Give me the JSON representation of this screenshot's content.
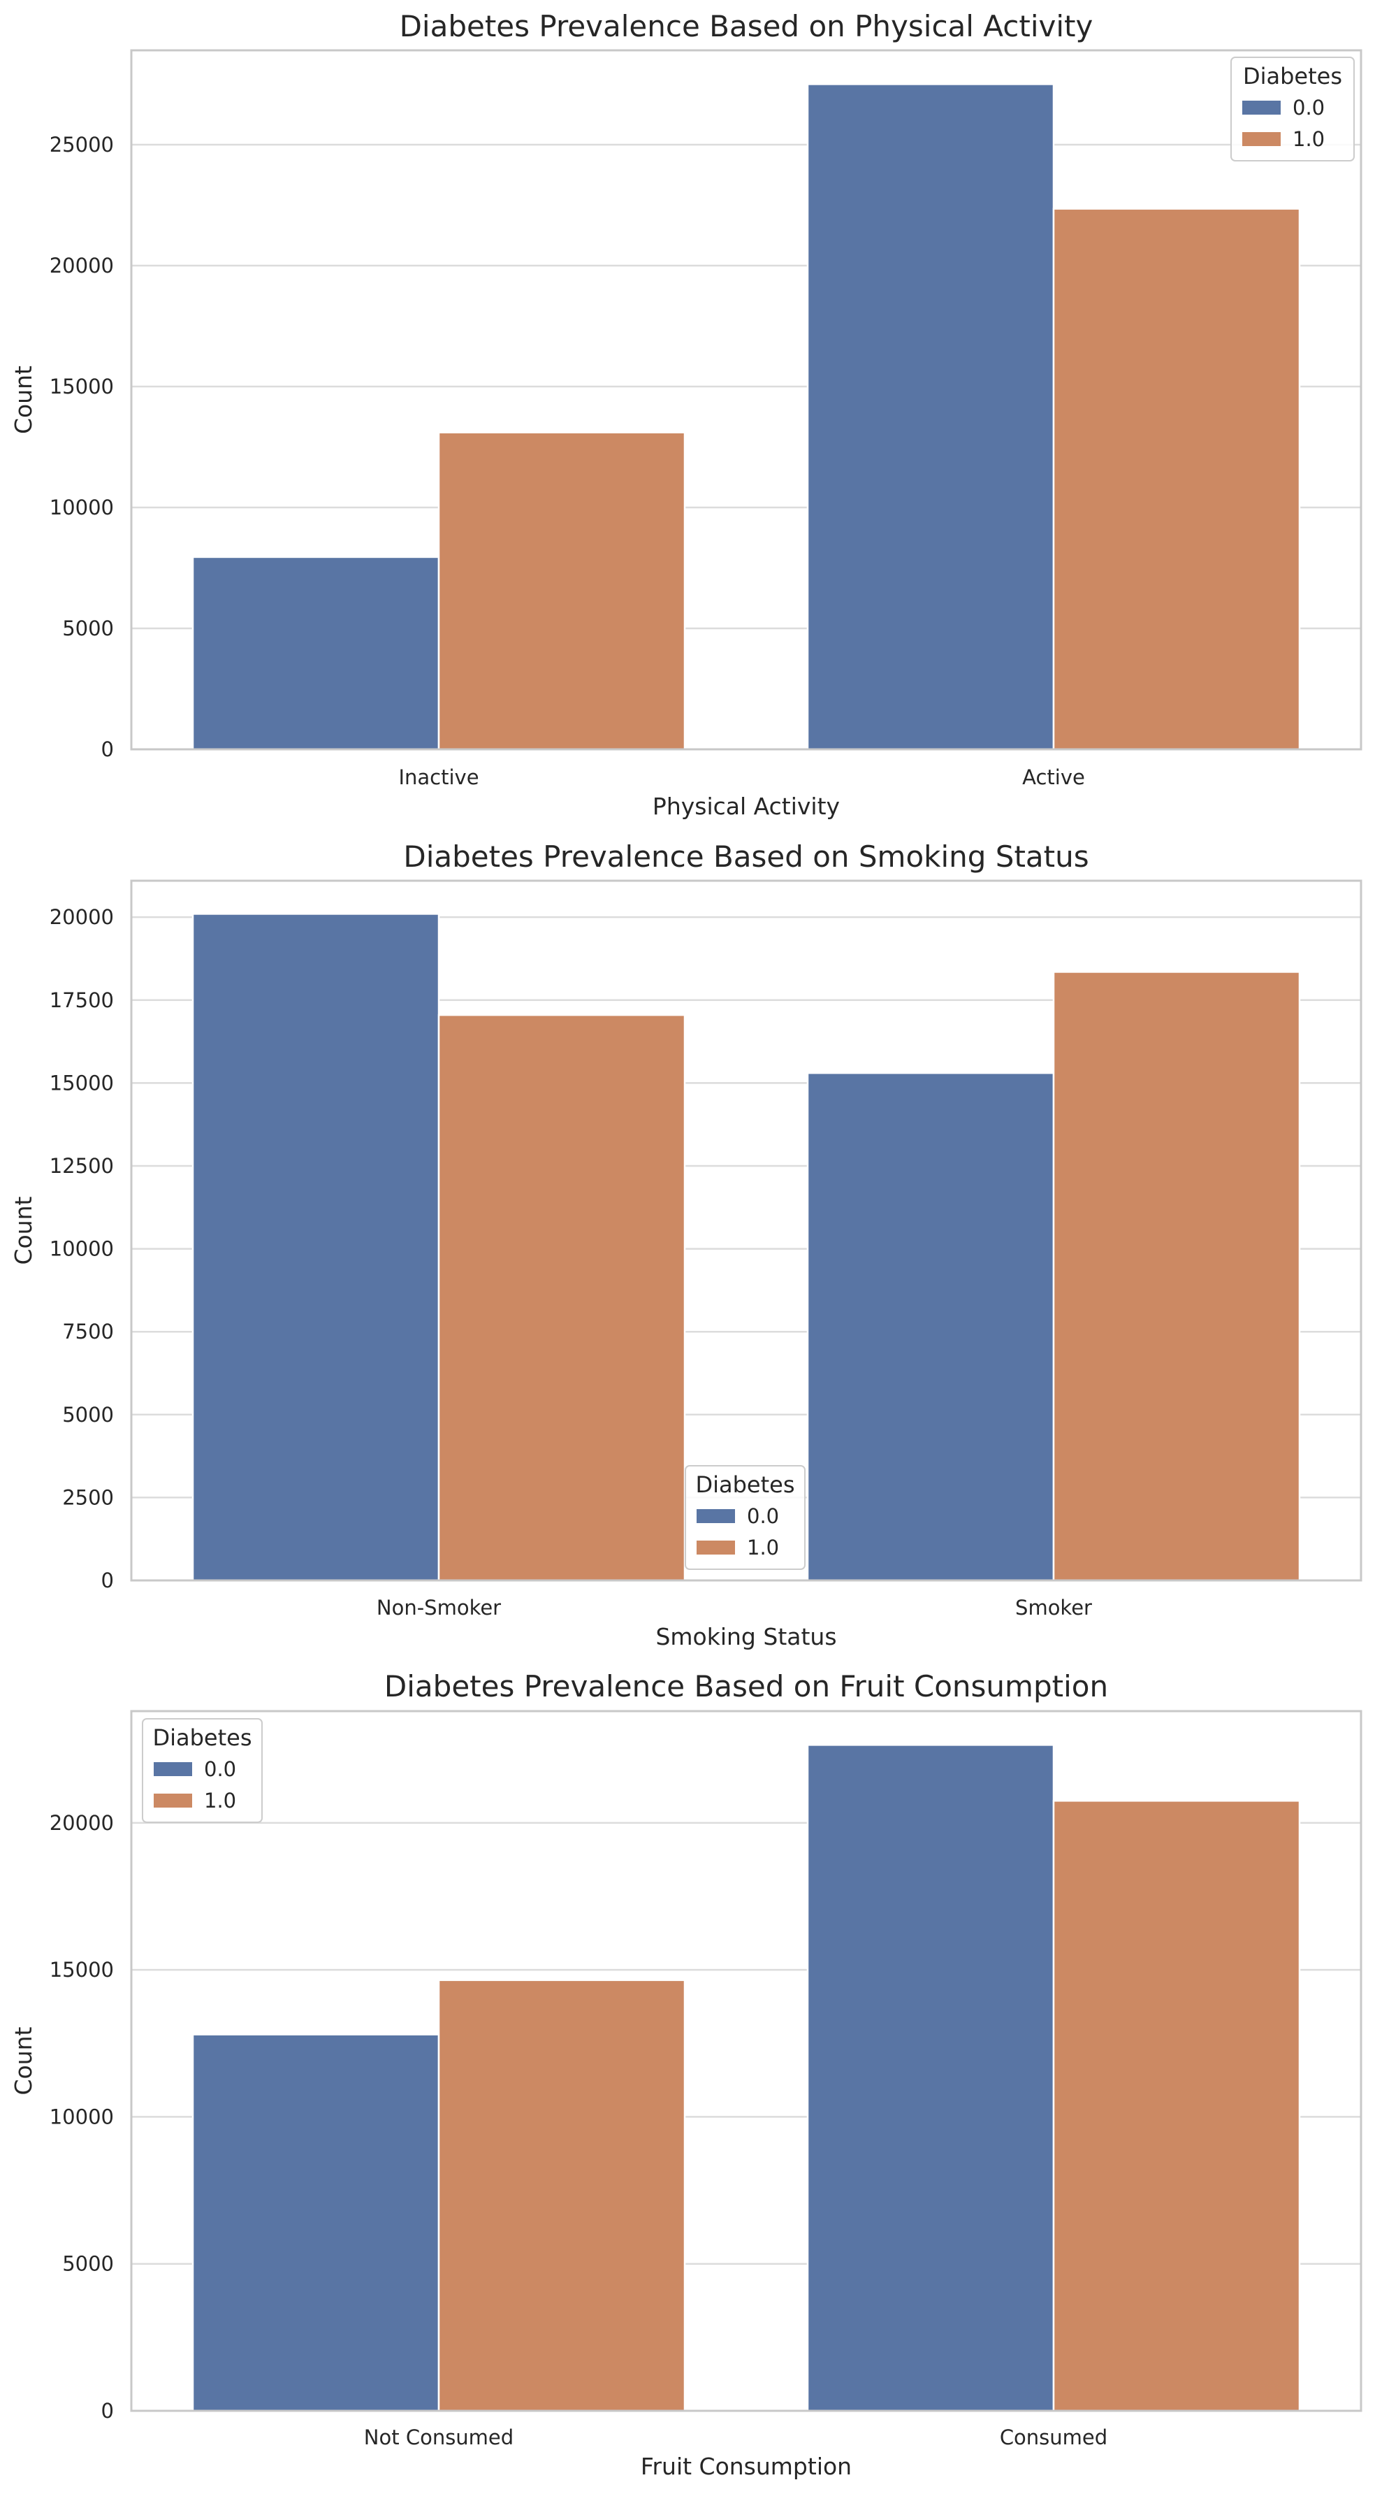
{
  "colors": {
    "series_0": "#5975a4",
    "series_1": "#cc8963",
    "grid": "#dcdcdc",
    "spine": "#c8c8c8",
    "text": "#262626"
  },
  "chart_data": [
    {
      "type": "bar",
      "title": "Diabetes Prevalence Based on Physical Activity",
      "xlabel": "Physical Activity",
      "ylabel": "Count",
      "categories": [
        "Inactive",
        "Active"
      ],
      "series": [
        {
          "name": "0.0",
          "values": [
            7950,
            27500
          ]
        },
        {
          "name": "1.0",
          "values": [
            13100,
            22350
          ]
        }
      ],
      "ylim": [
        0,
        28900
      ],
      "yticks": [
        0,
        5000,
        10000,
        15000,
        20000,
        25000
      ],
      "ytick_labels": [
        "0",
        "5000",
        "10000",
        "15000",
        "20000",
        "25000"
      ],
      "grid": true,
      "legend": {
        "title": "Diabetes",
        "placement": "top-right"
      }
    },
    {
      "type": "bar",
      "title": "Diabetes Prevalence Based on Smoking Status",
      "xlabel": "Smoking Status",
      "ylabel": "Count",
      "categories": [
        "Non-Smoker",
        "Smoker"
      ],
      "series": [
        {
          "name": "0.0",
          "values": [
            20100,
            15300
          ]
        },
        {
          "name": "1.0",
          "values": [
            17050,
            18350
          ]
        }
      ],
      "ylim": [
        0,
        21100
      ],
      "yticks": [
        0,
        2500,
        5000,
        7500,
        10000,
        12500,
        15000,
        17500,
        20000
      ],
      "ytick_labels": [
        "0",
        "2500",
        "5000",
        "7500",
        "10000",
        "12500",
        "15000",
        "17500",
        "20000"
      ],
      "grid": true,
      "legend": {
        "title": "Diabetes",
        "placement": "lower-center"
      }
    },
    {
      "type": "bar",
      "title": "Diabetes Prevalence Based on Fruit Consumption",
      "xlabel": "Fruit Consumption",
      "ylabel": "Count",
      "categories": [
        "Not Consumed",
        "Consumed"
      ],
      "series": [
        {
          "name": "0.0",
          "values": [
            12800,
            22650
          ]
        },
        {
          "name": "1.0",
          "values": [
            14650,
            20750
          ]
        }
      ],
      "ylim": [
        0,
        23800
      ],
      "yticks": [
        0,
        5000,
        10000,
        15000,
        20000
      ],
      "ytick_labels": [
        "0",
        "5000",
        "10000",
        "15000",
        "20000"
      ],
      "grid": true,
      "legend": {
        "title": "Diabetes",
        "placement": "top-left"
      }
    }
  ]
}
